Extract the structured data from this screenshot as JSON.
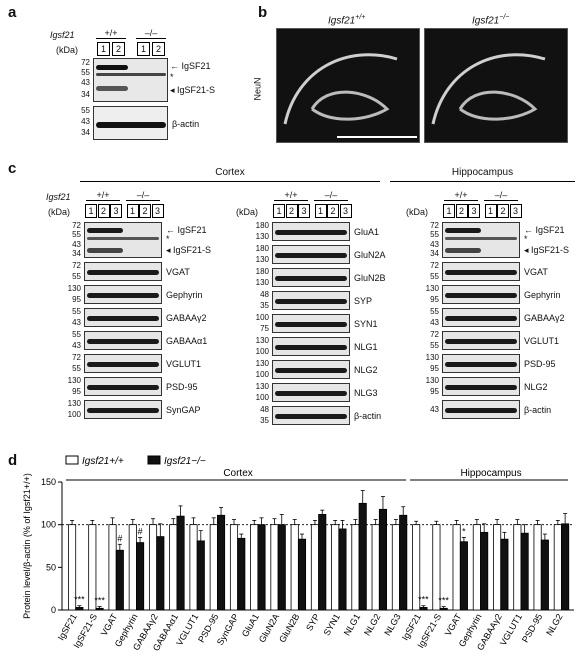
{
  "panel_a": {
    "letter": "a",
    "gene": "Igsf21",
    "genotypes": [
      "+/+",
      "–/–"
    ],
    "lanes": [
      "1",
      "2",
      "1",
      "2"
    ],
    "kda_label": "(kDa)",
    "blot1_ticks": [
      "72",
      "55",
      "43",
      "34"
    ],
    "blot2_ticks": [
      "55",
      "43",
      "34"
    ],
    "labels": [
      "IgSF21",
      "*",
      "IgSF21-S",
      "β-actin"
    ]
  },
  "panel_b": {
    "letter": "b",
    "title_wt": "Igsf21",
    "sup_wt": "+/+",
    "title_ko": "Igsf21",
    "sup_ko": "−/−",
    "side_label": "NeuN"
  },
  "panel_c": {
    "letter": "c",
    "cortex_title": "Cortex",
    "hippo_title": "Hippocampus",
    "gene": "Igsf21",
    "kda_label": "(kDa)",
    "genotypes": [
      "+/+",
      "–/–"
    ],
    "lanes": [
      "1",
      "2",
      "3",
      "1",
      "2",
      "3"
    ],
    "col1": [
      {
        "ticks": [
          "72",
          "55",
          "43",
          "34"
        ],
        "label": "IgSF21",
        "extra": [
          "*",
          "IgSF21-S"
        ]
      },
      {
        "ticks": [
          "72",
          "55"
        ],
        "label": "VGAT"
      },
      {
        "ticks": [
          "130",
          "95"
        ],
        "label": "Gephyrin"
      },
      {
        "ticks": [
          "55",
          "43"
        ],
        "label": "GABAAγ2"
      },
      {
        "ticks": [
          "55",
          "43"
        ],
        "label": "GABAAα1"
      },
      {
        "ticks": [
          "72",
          "55"
        ],
        "label": "VGLUT1"
      },
      {
        "ticks": [
          "130",
          "95"
        ],
        "label": "PSD-95"
      },
      {
        "ticks": [
          "130",
          "100"
        ],
        "label": "SynGAP"
      }
    ],
    "col2": [
      {
        "ticks": [
          "180",
          "130"
        ],
        "label": "GluA1"
      },
      {
        "ticks": [
          "180",
          "130"
        ],
        "label": "GluN2A"
      },
      {
        "ticks": [
          "180",
          "130"
        ],
        "label": "GluN2B"
      },
      {
        "ticks": [
          "48",
          "35"
        ],
        "label": "SYP"
      },
      {
        "ticks": [
          "100",
          "75"
        ],
        "label": "SYN1"
      },
      {
        "ticks": [
          "130",
          "100"
        ],
        "label": "NLG1"
      },
      {
        "ticks": [
          "130",
          "100"
        ],
        "label": "NLG2"
      },
      {
        "ticks": [
          "130",
          "100"
        ],
        "label": "NLG3"
      },
      {
        "ticks": [
          "48",
          "35"
        ],
        "label": "β-actin"
      }
    ],
    "col3": [
      {
        "ticks": [
          "72",
          "55",
          "43",
          "34"
        ],
        "label": "IgSF21",
        "extra": [
          "*",
          "IgSF21-S"
        ]
      },
      {
        "ticks": [
          "72",
          "55"
        ],
        "label": "VGAT"
      },
      {
        "ticks": [
          "130",
          "95"
        ],
        "label": "Gephyrin"
      },
      {
        "ticks": [
          "55",
          "43"
        ],
        "label": "GABAAγ2"
      },
      {
        "ticks": [
          "72",
          "55"
        ],
        "label": "VGLUT1"
      },
      {
        "ticks": [
          "130",
          "95"
        ],
        "label": "PSD-95"
      },
      {
        "ticks": [
          "130",
          "95"
        ],
        "label": "NLG2"
      },
      {
        "ticks": [
          "43"
        ],
        "label": "β-actin"
      }
    ]
  },
  "panel_d": {
    "letter": "d"
  },
  "colors": {
    "wt_bar": "#ffffff",
    "ko_bar": "#111111",
    "blot_bg": "#e6e6e6",
    "band": "#1a1a1a"
  },
  "chart_data": {
    "type": "bar",
    "legend": [
      "Igsf21+/+",
      "Igsf21−/−"
    ],
    "legend_placement": "top-left",
    "section_titles": [
      "Cortex",
      "Hippocampus"
    ],
    "ylabel": "Protein level/β-actin (% of Igsf21+/+)",
    "ylim": [
      0,
      150
    ],
    "yticks": [
      "0",
      "50",
      "100",
      "150"
    ],
    "reference_line": 100,
    "categories": [
      "IgSF21",
      "IgSF21-S",
      "VGAT",
      "Gephyrin",
      "GABAAγ2",
      "GABAAα1",
      "VGLUT1",
      "PSD-95",
      "SynGAP",
      "GluA1",
      "GluN2A",
      "GluN2B",
      "SYP",
      "SYN1",
      "NLG1",
      "NLG2",
      "NLG3",
      "IgSF21",
      "IgSF21-S",
      "VGAT",
      "Gephyrin",
      "GABAAγ2",
      "VGLUT1",
      "PSD-95",
      "NLG2"
    ],
    "series": [
      {
        "name": "Igsf21+/+",
        "values": [
          100,
          100,
          100,
          100,
          100,
          100,
          100,
          100,
          100,
          100,
          100,
          100,
          100,
          100,
          100,
          100,
          100,
          100,
          100,
          100,
          100,
          100,
          100,
          100,
          100
        ],
        "errors": [
          5,
          5,
          8,
          6,
          7,
          7,
          8,
          8,
          6,
          5,
          7,
          6,
          5,
          5,
          6,
          6,
          6,
          4,
          4,
          5,
          6,
          6,
          6,
          5,
          5
        ]
      },
      {
        "name": "Igsf21−/−",
        "values": [
          3,
          2,
          70,
          79,
          86,
          110,
          81,
          111,
          84,
          100,
          100,
          83,
          112,
          95,
          125,
          118,
          111,
          3,
          2,
          80,
          91,
          83,
          90,
          82,
          101
        ],
        "errors": [
          2,
          2,
          7,
          6,
          15,
          12,
          12,
          9,
          5,
          8,
          12,
          6,
          5,
          10,
          15,
          15,
          10,
          2,
          2,
          5,
          10,
          8,
          10,
          7,
          12
        ]
      }
    ],
    "annotations": [
      {
        "category_index": 0,
        "text": "***"
      },
      {
        "category_index": 1,
        "text": "***"
      },
      {
        "category_index": 2,
        "text": "#"
      },
      {
        "category_index": 3,
        "text": "#"
      },
      {
        "category_index": 17,
        "text": "***"
      },
      {
        "category_index": 18,
        "text": "***"
      },
      {
        "category_index": 19,
        "text": "*"
      }
    ],
    "sections": [
      {
        "name": "Cortex",
        "start": 0,
        "end": 16
      },
      {
        "name": "Hippocampus",
        "start": 17,
        "end": 24
      }
    ]
  }
}
